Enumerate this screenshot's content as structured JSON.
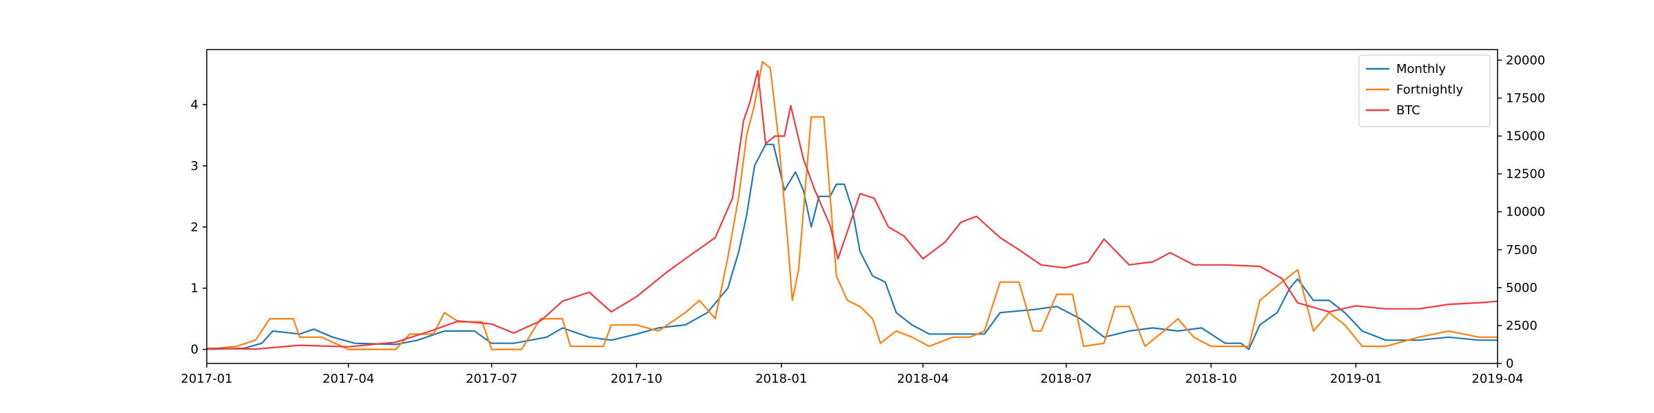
{
  "chart_data": {
    "type": "line",
    "title": "",
    "xlabel": "",
    "ylabel": "",
    "y2label": "",
    "xlim": [
      "2017-01-01",
      "2019-04-01"
    ],
    "ylim": [
      -0.23,
      4.9
    ],
    "y2lim": [
      0,
      20700
    ],
    "x_ticks": [
      "2017-01",
      "2017-04",
      "2017-07",
      "2017-10",
      "2018-01",
      "2018-04",
      "2018-07",
      "2018-10",
      "2019-01",
      "2019-04"
    ],
    "y_ticks": [
      "0",
      "1",
      "2",
      "3",
      "4"
    ],
    "y_tick_values": [
      0,
      1,
      2,
      3,
      4
    ],
    "y2_ticks": [
      "0",
      "2500",
      "5000",
      "7500",
      "10000",
      "12500",
      "15000",
      "17500",
      "20000"
    ],
    "y2_tick_values": [
      0,
      2500,
      5000,
      7500,
      10000,
      12500,
      15000,
      17500,
      20000
    ],
    "legend": {
      "position": "top-right",
      "entries": [
        "Monthly",
        "Fortnightly",
        "BTC"
      ]
    },
    "series": [
      {
        "name": "Monthly",
        "axis": "left",
        "color": "#1f77b4",
        "points": [
          [
            "2017-01-01",
            0.0
          ],
          [
            "2017-01-25",
            0.02
          ],
          [
            "2017-02-05",
            0.1
          ],
          [
            "2017-02-12",
            0.3
          ],
          [
            "2017-03-01",
            0.25
          ],
          [
            "2017-03-10",
            0.33
          ],
          [
            "2017-03-22",
            0.2
          ],
          [
            "2017-04-05",
            0.1
          ],
          [
            "2017-05-01",
            0.08
          ],
          [
            "2017-05-15",
            0.15
          ],
          [
            "2017-06-01",
            0.3
          ],
          [
            "2017-06-20",
            0.3
          ],
          [
            "2017-07-01",
            0.1
          ],
          [
            "2017-07-15",
            0.1
          ],
          [
            "2017-08-05",
            0.2
          ],
          [
            "2017-08-15",
            0.35
          ],
          [
            "2017-09-01",
            0.2
          ],
          [
            "2017-09-15",
            0.15
          ],
          [
            "2017-10-01",
            0.25
          ],
          [
            "2017-10-15",
            0.35
          ],
          [
            "2017-11-01",
            0.4
          ],
          [
            "2017-11-15",
            0.6
          ],
          [
            "2017-11-28",
            1.0
          ],
          [
            "2017-12-05",
            1.6
          ],
          [
            "2017-12-10",
            2.2
          ],
          [
            "2017-12-15",
            3.0
          ],
          [
            "2017-12-22",
            3.35
          ],
          [
            "2017-12-27",
            3.35
          ],
          [
            "2018-01-03",
            2.6
          ],
          [
            "2018-01-10",
            2.9
          ],
          [
            "2018-01-15",
            2.6
          ],
          [
            "2018-01-20",
            2.0
          ],
          [
            "2018-01-25",
            2.5
          ],
          [
            "2018-02-01",
            2.5
          ],
          [
            "2018-02-05",
            2.7
          ],
          [
            "2018-02-10",
            2.7
          ],
          [
            "2018-02-15",
            2.3
          ],
          [
            "2018-02-20",
            1.6
          ],
          [
            "2018-02-28",
            1.2
          ],
          [
            "2018-03-08",
            1.1
          ],
          [
            "2018-03-15",
            0.6
          ],
          [
            "2018-03-25",
            0.4
          ],
          [
            "2018-04-05",
            0.25
          ],
          [
            "2018-04-25",
            0.25
          ],
          [
            "2018-05-10",
            0.25
          ],
          [
            "2018-05-20",
            0.6
          ],
          [
            "2018-06-10",
            0.65
          ],
          [
            "2018-06-25",
            0.7
          ],
          [
            "2018-07-10",
            0.5
          ],
          [
            "2018-07-25",
            0.2
          ],
          [
            "2018-08-10",
            0.3
          ],
          [
            "2018-08-25",
            0.35
          ],
          [
            "2018-09-10",
            0.3
          ],
          [
            "2018-09-25",
            0.35
          ],
          [
            "2018-10-10",
            0.1
          ],
          [
            "2018-10-20",
            0.1
          ],
          [
            "2018-10-25",
            0.0
          ],
          [
            "2018-11-01",
            0.4
          ],
          [
            "2018-11-12",
            0.6
          ],
          [
            "2018-11-20",
            1.0
          ],
          [
            "2018-11-25",
            1.15
          ],
          [
            "2018-12-05",
            0.8
          ],
          [
            "2018-12-15",
            0.8
          ],
          [
            "2018-12-25",
            0.6
          ],
          [
            "2019-01-05",
            0.3
          ],
          [
            "2019-01-20",
            0.15
          ],
          [
            "2019-02-10",
            0.15
          ],
          [
            "2019-03-01",
            0.2
          ],
          [
            "2019-03-20",
            0.15
          ],
          [
            "2019-04-01",
            0.15
          ]
        ]
      },
      {
        "name": "Fortnightly",
        "axis": "left",
        "color": "#ff7f0e",
        "points": [
          [
            "2017-01-01",
            0.0
          ],
          [
            "2017-01-20",
            0.05
          ],
          [
            "2017-02-01",
            0.15
          ],
          [
            "2017-02-10",
            0.5
          ],
          [
            "2017-02-25",
            0.5
          ],
          [
            "2017-03-01",
            0.2
          ],
          [
            "2017-03-15",
            0.2
          ],
          [
            "2017-04-01",
            0.0
          ],
          [
            "2017-04-20",
            0.0
          ],
          [
            "2017-05-01",
            0.0
          ],
          [
            "2017-05-10",
            0.25
          ],
          [
            "2017-05-25",
            0.25
          ],
          [
            "2017-06-01",
            0.6
          ],
          [
            "2017-06-10",
            0.45
          ],
          [
            "2017-06-25",
            0.45
          ],
          [
            "2017-07-01",
            0.0
          ],
          [
            "2017-07-20",
            0.0
          ],
          [
            "2017-08-01",
            0.5
          ],
          [
            "2017-08-15",
            0.5
          ],
          [
            "2017-08-20",
            0.05
          ],
          [
            "2017-09-10",
            0.05
          ],
          [
            "2017-09-15",
            0.4
          ],
          [
            "2017-10-01",
            0.4
          ],
          [
            "2017-10-15",
            0.3
          ],
          [
            "2017-11-01",
            0.6
          ],
          [
            "2017-11-10",
            0.8
          ],
          [
            "2017-11-20",
            0.5
          ],
          [
            "2017-11-28",
            1.5
          ],
          [
            "2017-12-05",
            2.5
          ],
          [
            "2017-12-10",
            3.5
          ],
          [
            "2017-12-15",
            4.0
          ],
          [
            "2017-12-20",
            4.7
          ],
          [
            "2017-12-25",
            4.6
          ],
          [
            "2017-12-30",
            3.5
          ],
          [
            "2018-01-05",
            1.8
          ],
          [
            "2018-01-08",
            0.8
          ],
          [
            "2018-01-12",
            1.3
          ],
          [
            "2018-01-20",
            3.8
          ],
          [
            "2018-01-28",
            3.8
          ],
          [
            "2018-02-05",
            1.2
          ],
          [
            "2018-02-12",
            0.8
          ],
          [
            "2018-02-20",
            0.7
          ],
          [
            "2018-02-28",
            0.5
          ],
          [
            "2018-03-05",
            0.1
          ],
          [
            "2018-03-15",
            0.3
          ],
          [
            "2018-03-25",
            0.2
          ],
          [
            "2018-04-05",
            0.05
          ],
          [
            "2018-04-20",
            0.2
          ],
          [
            "2018-05-01",
            0.2
          ],
          [
            "2018-05-10",
            0.3
          ],
          [
            "2018-05-20",
            1.1
          ],
          [
            "2018-06-01",
            1.1
          ],
          [
            "2018-06-10",
            0.3
          ],
          [
            "2018-06-15",
            0.3
          ],
          [
            "2018-06-25",
            0.9
          ],
          [
            "2018-07-05",
            0.9
          ],
          [
            "2018-07-12",
            0.05
          ],
          [
            "2018-07-25",
            0.1
          ],
          [
            "2018-08-01",
            0.7
          ],
          [
            "2018-08-10",
            0.7
          ],
          [
            "2018-08-20",
            0.05
          ],
          [
            "2018-09-01",
            0.3
          ],
          [
            "2018-09-10",
            0.5
          ],
          [
            "2018-09-20",
            0.2
          ],
          [
            "2018-10-01",
            0.05
          ],
          [
            "2018-10-25",
            0.05
          ],
          [
            "2018-11-01",
            0.8
          ],
          [
            "2018-11-15",
            1.1
          ],
          [
            "2018-11-25",
            1.3
          ],
          [
            "2018-12-05",
            0.3
          ],
          [
            "2018-12-15",
            0.6
          ],
          [
            "2018-12-25",
            0.4
          ],
          [
            "2019-01-05",
            0.05
          ],
          [
            "2019-01-20",
            0.05
          ],
          [
            "2019-02-10",
            0.2
          ],
          [
            "2019-03-01",
            0.3
          ],
          [
            "2019-03-20",
            0.2
          ],
          [
            "2019-04-01",
            0.2
          ]
        ]
      },
      {
        "name": "BTC",
        "axis": "right",
        "color": "#f0383d",
        "points": [
          [
            "2017-01-01",
            1000
          ],
          [
            "2017-02-01",
            950
          ],
          [
            "2017-03-01",
            1200
          ],
          [
            "2017-04-01",
            1100
          ],
          [
            "2017-05-01",
            1400
          ],
          [
            "2017-05-25",
            2200
          ],
          [
            "2017-06-10",
            2800
          ],
          [
            "2017-07-01",
            2600
          ],
          [
            "2017-07-15",
            2000
          ],
          [
            "2017-08-01",
            2800
          ],
          [
            "2017-08-15",
            4100
          ],
          [
            "2017-09-01",
            4700
          ],
          [
            "2017-09-15",
            3400
          ],
          [
            "2017-10-01",
            4400
          ],
          [
            "2017-10-20",
            6000
          ],
          [
            "2017-11-01",
            6900
          ],
          [
            "2017-11-20",
            8300
          ],
          [
            "2017-12-01",
            10900
          ],
          [
            "2017-12-08",
            16000
          ],
          [
            "2017-12-12",
            17200
          ],
          [
            "2017-12-17",
            19300
          ],
          [
            "2017-12-22",
            14500
          ],
          [
            "2017-12-28",
            15000
          ],
          [
            "2018-01-03",
            15000
          ],
          [
            "2018-01-07",
            17000
          ],
          [
            "2018-01-15",
            13500
          ],
          [
            "2018-01-22",
            11500
          ],
          [
            "2018-02-01",
            9100
          ],
          [
            "2018-02-06",
            6900
          ],
          [
            "2018-02-12",
            8700
          ],
          [
            "2018-02-20",
            11200
          ],
          [
            "2018-03-01",
            10900
          ],
          [
            "2018-03-10",
            9000
          ],
          [
            "2018-03-20",
            8400
          ],
          [
            "2018-04-01",
            6900
          ],
          [
            "2018-04-15",
            8000
          ],
          [
            "2018-04-25",
            9300
          ],
          [
            "2018-05-05",
            9700
          ],
          [
            "2018-05-20",
            8300
          ],
          [
            "2018-06-01",
            7500
          ],
          [
            "2018-06-15",
            6500
          ],
          [
            "2018-06-30",
            6300
          ],
          [
            "2018-07-15",
            6700
          ],
          [
            "2018-07-25",
            8200
          ],
          [
            "2018-08-10",
            6500
          ],
          [
            "2018-08-25",
            6700
          ],
          [
            "2018-09-05",
            7300
          ],
          [
            "2018-09-20",
            6500
          ],
          [
            "2018-10-10",
            6500
          ],
          [
            "2018-11-01",
            6400
          ],
          [
            "2018-11-15",
            5600
          ],
          [
            "2018-11-25",
            4000
          ],
          [
            "2018-12-15",
            3400
          ],
          [
            "2019-01-01",
            3800
          ],
          [
            "2019-01-20",
            3600
          ],
          [
            "2019-02-10",
            3600
          ],
          [
            "2019-03-01",
            3900
          ],
          [
            "2019-03-20",
            4000
          ],
          [
            "2019-04-01",
            4100
          ]
        ]
      }
    ]
  }
}
